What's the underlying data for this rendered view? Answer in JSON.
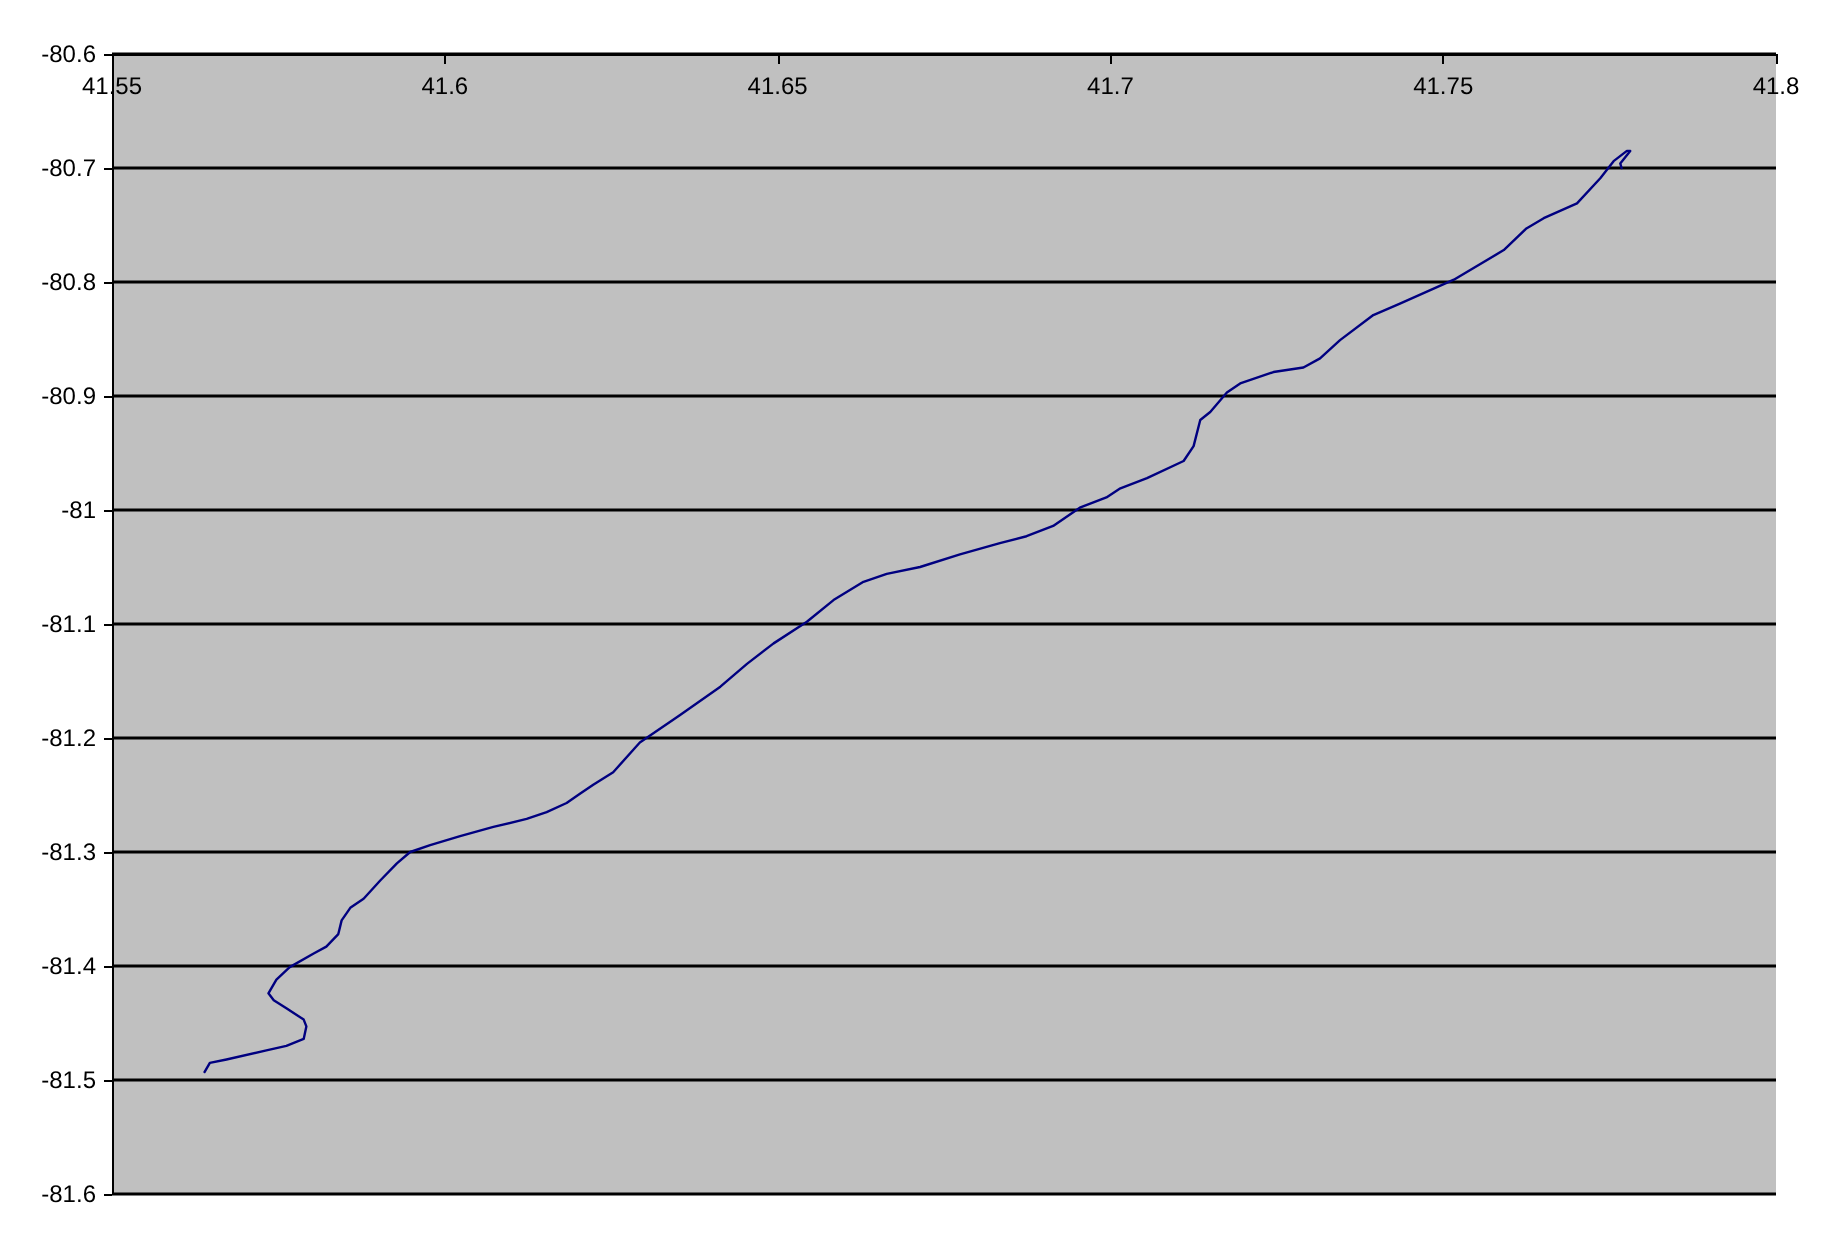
{
  "chart_data": {
    "type": "line",
    "color": "#000080",
    "marker": "none",
    "grid": "y",
    "xlim": [
      41.55,
      41.8
    ],
    "xticks": [
      41.55,
      41.6,
      41.65,
      41.7,
      41.75,
      41.8
    ],
    "ylim": [
      -81.6,
      -80.6
    ],
    "yticks": [
      -81.6,
      -81.5,
      -81.4,
      -81.3,
      -81.2,
      -81.1,
      -81,
      -80.9,
      -80.8,
      -80.7,
      -80.6
    ],
    "x": [
      41.5639,
      41.5647,
      41.5672,
      41.5732,
      41.5762,
      41.5788,
      41.5792,
      41.5788,
      41.5762,
      41.5743,
      41.5735,
      41.5747,
      41.5767,
      41.5803,
      41.5822,
      41.584,
      41.5845,
      41.5858,
      41.5878,
      41.5903,
      41.5928,
      41.5948,
      41.5978,
      41.6023,
      41.6073,
      41.6123,
      41.6153,
      41.6183,
      41.6203,
      41.6223,
      41.6253,
      41.6293,
      41.6353,
      41.6414,
      41.6454,
      41.6494,
      41.6544,
      41.6584,
      41.6629,
      41.6664,
      41.6714,
      41.6774,
      41.6834,
      41.6874,
      41.6914,
      41.6954,
      41.6994,
      41.7015,
      41.7055,
      41.711,
      41.7125,
      41.7135,
      41.715,
      41.7175,
      41.7195,
      41.7245,
      41.729,
      41.7315,
      41.7345,
      41.7395,
      41.7435,
      41.7516,
      41.7591,
      41.7625,
      41.7651,
      41.7701,
      41.7736,
      41.7756,
      41.7776,
      41.7781,
      41.7766,
      41.7768
    ],
    "values": [
      -81.493,
      -81.485,
      -81.482,
      -81.474,
      -81.47,
      -81.464,
      -81.453,
      -81.447,
      -81.437,
      -81.43,
      -81.424,
      -81.412,
      -81.401,
      -81.389,
      -81.383,
      -81.372,
      -81.36,
      -81.349,
      -81.341,
      -81.325,
      -81.31,
      -81.3,
      -81.294,
      -81.286,
      -81.278,
      -81.271,
      -81.265,
      -81.257,
      -81.249,
      -81.241,
      -81.23,
      -81.204,
      -81.18,
      -81.155,
      -81.135,
      -81.117,
      -81.098,
      -81.079,
      -81.063,
      -81.056,
      -81.05,
      -81.039,
      -81.029,
      -81.023,
      -81.014,
      -80.998,
      -80.989,
      -80.981,
      -80.972,
      -80.957,
      -80.944,
      -80.921,
      -80.914,
      -80.897,
      -80.889,
      -80.879,
      -80.875,
      -80.867,
      -80.851,
      -80.829,
      -80.819,
      -80.798,
      -80.772,
      -80.753,
      -80.744,
      -80.731,
      -80.709,
      -80.694,
      -80.685,
      -80.685,
      -80.696,
      -80.7
    ]
  }
}
